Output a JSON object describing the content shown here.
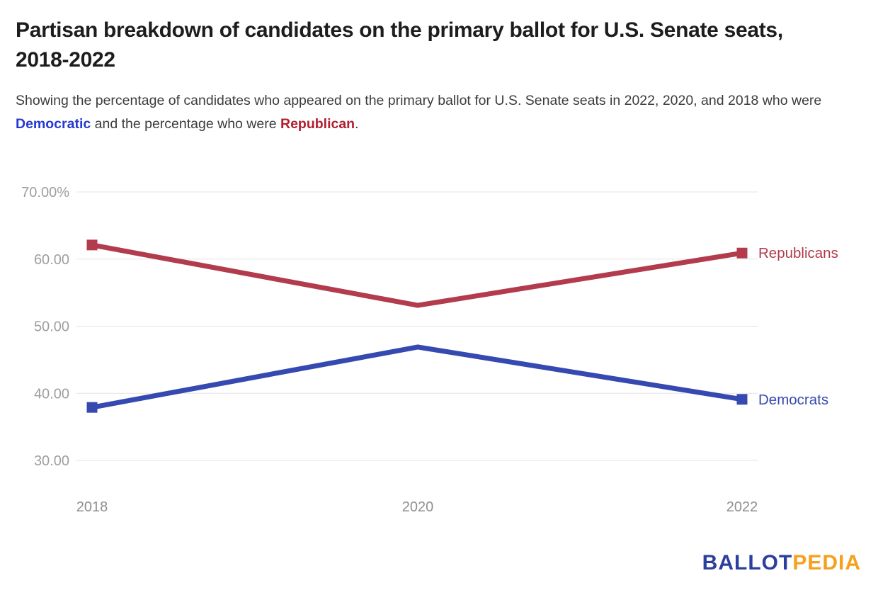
{
  "header": {
    "title": "Partisan breakdown of candidates on the primary ballot for U.S. Senate seats, 2018-2022",
    "subtitle": {
      "part1": "Showing the percentage of candidates who appeared on the primary ballot for U.S. Senate seats in 2022, 2020, and 2018 who were ",
      "democratic": "Democratic",
      "part2": " and the percentage who were ",
      "republican": "Republican",
      "part3": "."
    }
  },
  "colors": {
    "title_text": "#1d1d1d",
    "subtitle_text": "#3c3c3c",
    "democratic_highlight": "#2539d0",
    "republican_highlight": "#b01f2e",
    "republicans_line": "#b23b4d",
    "democrats_line": "#3549b0",
    "gridline": "#e3e3e3",
    "y_axis_label": "#9e9e9e",
    "x_axis_label": "#8f8f8f",
    "logo_blue": "#2b3f9c",
    "logo_orange": "#f7a01d"
  },
  "chart_data": {
    "type": "line",
    "categories": [
      "2018",
      "2020",
      "2022"
    ],
    "series": [
      {
        "name": "Republicans",
        "values": [
          62.1,
          53.1,
          60.9
        ],
        "color": "#b23b4d"
      },
      {
        "name": "Democrats",
        "values": [
          37.9,
          46.9,
          39.1
        ],
        "color": "#3549b0"
      }
    ],
    "title": "Partisan breakdown of candidates on the primary ballot for U.S. Senate seats, 2018-2022",
    "xlabel": "",
    "ylabel": "",
    "ylim": [
      30,
      70
    ],
    "y_ticks": [
      {
        "value": 70,
        "label": "70.00%"
      },
      {
        "value": 60,
        "label": "60.00"
      },
      {
        "value": 50,
        "label": "50.00"
      },
      {
        "value": 40,
        "label": "40.00"
      },
      {
        "value": 30,
        "label": "30.00"
      }
    ],
    "grid": true,
    "legend_position": "end-of-line-labels",
    "marker": "square-endpoints-only"
  },
  "footer": {
    "logo_blue": "BALLOT",
    "logo_orange": "PEDIA"
  }
}
